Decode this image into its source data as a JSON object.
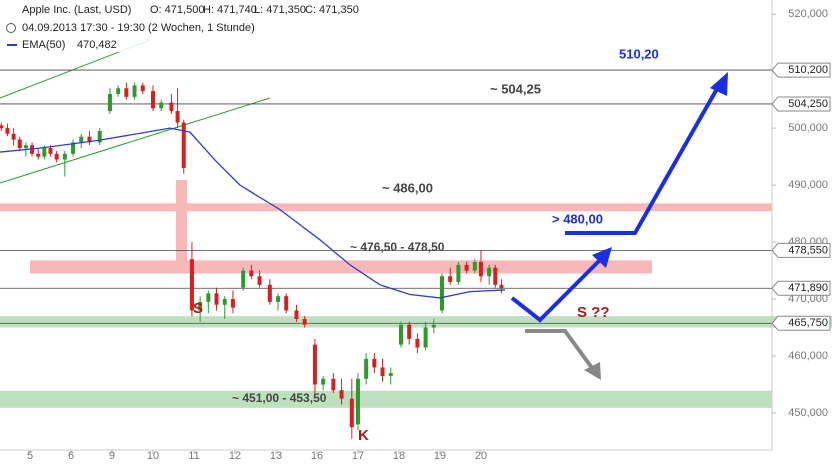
{
  "chart_data": {
    "type": "candlestick",
    "title": "Apple Inc. (Last, USD)",
    "ohlc_text": [
      "O: 471,500",
      "H: 471,740",
      "L: 471,350",
      "C: 471,350"
    ],
    "subtitle": "04.09.2013 17:30 - 19:30 (2 Wochen, 1 Stunde)",
    "ema_label": "EMA(50)",
    "ema_value": "470,482",
    "xlim": [
      -0.732,
      18.1
    ],
    "ylim": [
      443.5,
      522.5
    ],
    "xticks": [
      {
        "value": 0,
        "label": "5"
      },
      {
        "value": 1,
        "label": "6"
      },
      {
        "value": 2,
        "label": "9"
      },
      {
        "value": 3,
        "label": "10"
      },
      {
        "value": 4,
        "label": "11"
      },
      {
        "value": 5,
        "label": "12"
      },
      {
        "value": 6,
        "label": "13"
      },
      {
        "value": 7,
        "label": "16"
      },
      {
        "value": 8,
        "label": "17"
      },
      {
        "value": 9,
        "label": "18"
      },
      {
        "value": 10,
        "label": "19"
      },
      {
        "value": 11,
        "label": "20"
      }
    ],
    "yticks": [
      {
        "value": 450,
        "label": "450,000"
      },
      {
        "value": 460,
        "label": "460,000"
      },
      {
        "value": 470,
        "label": "470,000"
      },
      {
        "value": 480,
        "label": "480,000"
      },
      {
        "value": 490,
        "label": "490,000"
      },
      {
        "value": 500,
        "label": "500,000"
      },
      {
        "value": 510,
        "label": "510,000"
      },
      {
        "value": 520,
        "label": "520,000"
      }
    ],
    "up_color": "#2e9a2e",
    "down_color": "#d42020",
    "candles": {
      "x": [
        -0.7,
        -0.55,
        -0.4,
        -0.25,
        -0.1,
        0.05,
        0.2,
        0.35,
        0.5,
        0.65,
        0.85,
        1.05,
        1.25,
        1.45,
        1.7,
        1.95,
        2.15,
        2.35,
        2.55,
        2.75,
        3.0,
        3.2,
        3.45,
        3.6,
        3.75,
        3.95,
        4.15,
        4.35,
        4.55,
        4.75,
        4.95,
        5.2,
        5.4,
        5.6,
        5.85,
        6.05,
        6.25,
        6.5,
        6.7,
        6.95,
        7.15,
        7.4,
        7.6,
        7.85,
        8.0,
        8.2,
        8.4,
        8.6,
        8.8,
        9.05,
        9.25,
        9.45,
        9.65,
        9.85,
        10.05,
        10.25,
        10.45,
        10.65,
        10.85,
        11.0,
        11.2,
        11.35,
        11.5
      ],
      "open": [
        500.5,
        500,
        499,
        498,
        496.5,
        497,
        495.5,
        495,
        496.5,
        495.5,
        494.5,
        495.5,
        497.5,
        498.5,
        497.5,
        503,
        506,
        507,
        505.5,
        507.5,
        506.5,
        503.5,
        504.5,
        503,
        501,
        477,
        468,
        469.5,
        471,
        469,
        470,
        472,
        475,
        474,
        472.5,
        469.5,
        470.5,
        468,
        466.5,
        462,
        455,
        456,
        454,
        452.5,
        448,
        456,
        459.5,
        458,
        456.5,
        462,
        465.5,
        463,
        461.5,
        465,
        468,
        474,
        473,
        476,
        475,
        476.5,
        474,
        475.5,
        472.5
      ],
      "high": [
        501,
        500.8,
        500,
        498.5,
        497.5,
        497.5,
        496.5,
        497,
        497,
        496,
        496,
        498,
        499,
        499.5,
        500,
        507,
        507.5,
        508,
        508,
        508,
        507.5,
        505,
        506,
        507,
        501.5,
        480,
        470.5,
        471.5,
        472,
        470.5,
        471.5,
        475.5,
        476,
        475,
        473.5,
        471,
        471,
        469,
        467,
        463,
        456.5,
        457,
        456,
        456,
        457,
        460.5,
        460.5,
        459.5,
        458,
        466,
        466,
        464,
        466,
        466.5,
        474.5,
        475.5,
        476.5,
        476.5,
        477,
        478.5,
        476,
        476,
        473.5
      ],
      "low": [
        499.5,
        498.6,
        497,
        496,
        495,
        495,
        494.5,
        494.5,
        495,
        494,
        491.5,
        495,
        496.5,
        497,
        497,
        502.5,
        505.5,
        505,
        505,
        506,
        503,
        503,
        502.5,
        500,
        492,
        467,
        466,
        467.5,
        468,
        466.5,
        467.5,
        471.5,
        473.5,
        472,
        469,
        468,
        467.5,
        466,
        465,
        453.5,
        454,
        453.5,
        451.5,
        445.5,
        447,
        455,
        457,
        455.5,
        455,
        461.5,
        462,
        460.5,
        461,
        464,
        467.5,
        472.5,
        472.5,
        474.5,
        474.5,
        473,
        472.5,
        472,
        471
      ],
      "close": [
        500,
        499,
        498,
        496.5,
        497,
        495.5,
        495,
        496.5,
        495.5,
        494.5,
        495.5,
        497.5,
        498.5,
        497.5,
        499.5,
        506,
        507,
        505.5,
        507.5,
        506.5,
        503.5,
        504.5,
        503,
        501,
        493,
        468,
        469.5,
        471,
        469,
        470,
        468.5,
        475,
        474,
        472.5,
        469.5,
        470.5,
        468,
        466.5,
        465.5,
        455,
        456,
        454,
        452.5,
        447.5,
        456,
        459.5,
        458,
        456.5,
        457,
        465.5,
        463,
        461.5,
        465,
        465.5,
        474,
        473,
        476,
        475,
        476.5,
        474,
        475.5,
        472.5,
        471.9
      ]
    },
    "ema": {
      "name": "EMA(50)",
      "color": "#2a3fd0",
      "x": [
        -0.732,
        0.244,
        1.707,
        3.415,
        3.902,
        4.512,
        5.122,
        6.098,
        7.073,
        7.805,
        8.537,
        9.268,
        10.0,
        10.732,
        11.585
      ],
      "values": [
        495.8,
        496.5,
        497.9,
        500.0,
        499.3,
        494.4,
        490.0,
        485.7,
        480.4,
        476.0,
        472.5,
        470.8,
        470.2,
        471.3,
        471.6
      ]
    },
    "levels": [
      {
        "value": 510.2,
        "label": "510,200"
      },
      {
        "value": 504.25,
        "label": "504,250"
      },
      {
        "value": 478.55,
        "label": "478,550"
      },
      {
        "value": 471.89,
        "label": "471,890"
      },
      {
        "value": 465.75,
        "label": "465,750"
      }
    ],
    "zones": [
      {
        "lo": 485.4,
        "hi": 486.8,
        "color": "#f6b8b8"
      },
      {
        "lo": 474.5,
        "hi": 476.8,
        "color": "#f6b8b8"
      },
      {
        "lo": 465.0,
        "hi": 467.0,
        "color": "#bfe0bf"
      },
      {
        "lo": 450.9,
        "hi": 453.9,
        "color": "#bfe0bf"
      }
    ],
    "annotations": [
      "510,20",
      "~ 504,25",
      "~ 486,00",
      "~ 476,50 - 478,50",
      "> 480,00",
      "S ??",
      "S",
      "K",
      "~ 451,00 - 453,50"
    ]
  }
}
